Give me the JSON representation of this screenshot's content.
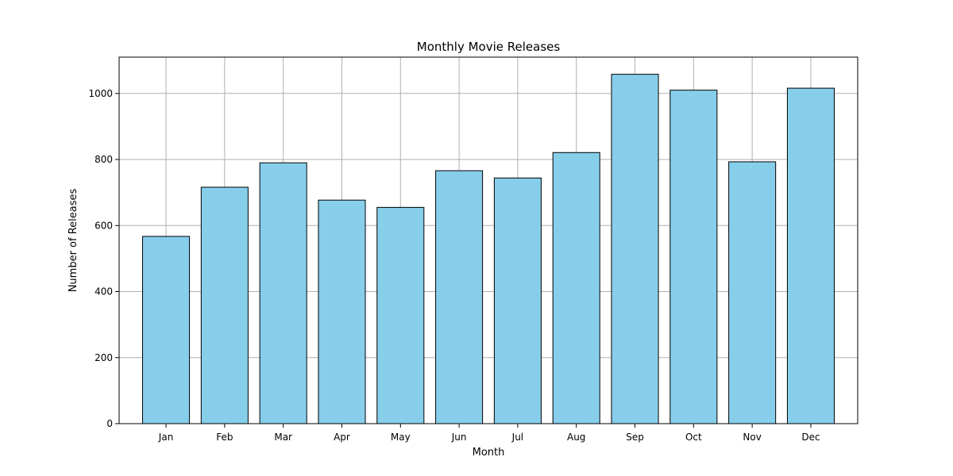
{
  "chart_data": {
    "type": "bar",
    "title": "Monthly Movie Releases",
    "xlabel": "Month",
    "ylabel": "Number of Releases",
    "categories": [
      "Jan",
      "Feb",
      "Mar",
      "Apr",
      "May",
      "Jun",
      "Jul",
      "Aug",
      "Sep",
      "Oct",
      "Nov",
      "Dec"
    ],
    "values": [
      567,
      716,
      790,
      677,
      655,
      766,
      744,
      821,
      1058,
      1010,
      793,
      1016
    ],
    "ylim": [
      0,
      1110
    ],
    "yticks": [
      0,
      200,
      400,
      600,
      800,
      1000
    ],
    "grid": true,
    "colors": {
      "bar_fill": "#87ceeb",
      "bar_edge": "#000000",
      "grid": "#b0b0b0"
    }
  }
}
